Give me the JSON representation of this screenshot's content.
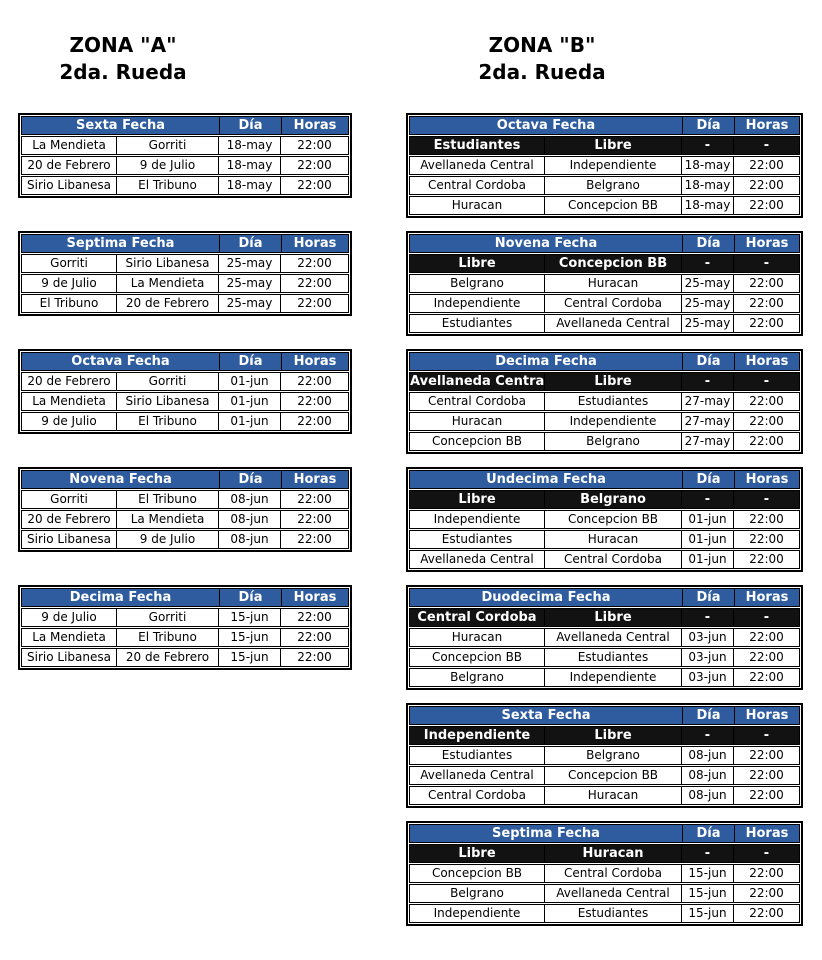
{
  "labels": {
    "dia": "Día",
    "horas": "Horas"
  },
  "colors": {
    "header_bg": "#2e5c9e",
    "header_text": "#ffffff",
    "libre_bg": "#121212",
    "libre_text": "#ffffff",
    "border": "#000000",
    "row_bg": "#ffffff",
    "row_text": "#000000",
    "title_text": "#000000"
  },
  "zones": [
    {
      "id": "A",
      "title_line1": "ZONA \"A\"",
      "title_line2": "2da. Rueda",
      "tables": [
        {
          "fecha": "Sexta Fecha",
          "rows": [
            {
              "home": "La Mendieta",
              "away": "Gorriti",
              "dia": "18-may",
              "horas": "22:00",
              "libre": false
            },
            {
              "home": "20 de Febrero",
              "away": "9 de Julio",
              "dia": "18-may",
              "horas": "22:00",
              "libre": false
            },
            {
              "home": "Sirio Libanesa",
              "away": "El Tribuno",
              "dia": "18-may",
              "horas": "22:00",
              "libre": false
            }
          ]
        },
        {
          "fecha": "Septima Fecha",
          "rows": [
            {
              "home": "Gorriti",
              "away": "Sirio Libanesa",
              "dia": "25-may",
              "horas": "22:00",
              "libre": false
            },
            {
              "home": "9 de Julio",
              "away": "La Mendieta",
              "dia": "25-may",
              "horas": "22:00",
              "libre": false
            },
            {
              "home": "El Tribuno",
              "away": "20 de Febrero",
              "dia": "25-may",
              "horas": "22:00",
              "libre": false
            }
          ]
        },
        {
          "fecha": "Octava Fecha",
          "rows": [
            {
              "home": "20 de Febrero",
              "away": "Gorriti",
              "dia": "01-jun",
              "horas": "22:00",
              "libre": false
            },
            {
              "home": "La Mendieta",
              "away": "Sirio Libanesa",
              "dia": "01-jun",
              "horas": "22:00",
              "libre": false
            },
            {
              "home": "9 de Julio",
              "away": "El Tribuno",
              "dia": "01-jun",
              "horas": "22:00",
              "libre": false
            }
          ]
        },
        {
          "fecha": "Novena Fecha",
          "rows": [
            {
              "home": "Gorriti",
              "away": "El Tribuno",
              "dia": "08-jun",
              "horas": "22:00",
              "libre": false
            },
            {
              "home": "20 de Febrero",
              "away": "La Mendieta",
              "dia": "08-jun",
              "horas": "22:00",
              "libre": false
            },
            {
              "home": "Sirio Libanesa",
              "away": "9 de Julio",
              "dia": "08-jun",
              "horas": "22:00",
              "libre": false
            }
          ]
        },
        {
          "fecha": "Decima Fecha",
          "rows": [
            {
              "home": "9 de Julio",
              "away": "Gorriti",
              "dia": "15-jun",
              "horas": "22:00",
              "libre": false
            },
            {
              "home": "La Mendieta",
              "away": "El Tribuno",
              "dia": "15-jun",
              "horas": "22:00",
              "libre": false
            },
            {
              "home": "Sirio Libanesa",
              "away": "20 de Febrero",
              "dia": "15-jun",
              "horas": "22:00",
              "libre": false
            }
          ]
        }
      ]
    },
    {
      "id": "B",
      "title_line1": "ZONA \"B\"",
      "title_line2": "2da. Rueda",
      "tables": [
        {
          "fecha": "Octava Fecha",
          "rows": [
            {
              "home": "Estudiantes",
              "away": "Libre",
              "dia": "-",
              "horas": "-",
              "libre": true
            },
            {
              "home": "Avellaneda Central",
              "away": "Independiente",
              "dia": "18-may",
              "horas": "22:00",
              "libre": false
            },
            {
              "home": "Central Cordoba",
              "away": "Belgrano",
              "dia": "18-may",
              "horas": "22:00",
              "libre": false
            },
            {
              "home": "Huracan",
              "away": "Concepcion BB",
              "dia": "18-may",
              "horas": "22:00",
              "libre": false
            }
          ]
        },
        {
          "fecha": "Novena Fecha",
          "rows": [
            {
              "home": "Libre",
              "away": "Concepcion BB",
              "dia": "-",
              "horas": "-",
              "libre": true
            },
            {
              "home": "Belgrano",
              "away": "Huracan",
              "dia": "25-may",
              "horas": "22:00",
              "libre": false
            },
            {
              "home": "Independiente",
              "away": "Central Cordoba",
              "dia": "25-may",
              "horas": "22:00",
              "libre": false
            },
            {
              "home": "Estudiantes",
              "away": "Avellaneda Central",
              "dia": "25-may",
              "horas": "22:00",
              "libre": false
            }
          ]
        },
        {
          "fecha": "Decima Fecha",
          "rows": [
            {
              "home": "Avellaneda Central",
              "away": "Libre",
              "dia": "-",
              "horas": "-",
              "libre": true
            },
            {
              "home": "Central Cordoba",
              "away": "Estudiantes",
              "dia": "27-may",
              "horas": "22:00",
              "libre": false
            },
            {
              "home": "Huracan",
              "away": "Independiente",
              "dia": "27-may",
              "horas": "22:00",
              "libre": false
            },
            {
              "home": "Concepcion BB",
              "away": "Belgrano",
              "dia": "27-may",
              "horas": "22:00",
              "libre": false
            }
          ]
        },
        {
          "fecha": "Undecima Fecha",
          "rows": [
            {
              "home": "Libre",
              "away": "Belgrano",
              "dia": "-",
              "horas": "-",
              "libre": true
            },
            {
              "home": "Independiente",
              "away": "Concepcion BB",
              "dia": "01-jun",
              "horas": "22:00",
              "libre": false
            },
            {
              "home": "Estudiantes",
              "away": "Huracan",
              "dia": "01-jun",
              "horas": "22:00",
              "libre": false
            },
            {
              "home": "Avellaneda Central",
              "away": "Central Cordoba",
              "dia": "01-jun",
              "horas": "22:00",
              "libre": false
            }
          ]
        },
        {
          "fecha": "Duodecima Fecha",
          "rows": [
            {
              "home": "Central Cordoba",
              "away": "Libre",
              "dia": "-",
              "horas": "-",
              "libre": true
            },
            {
              "home": "Huracan",
              "away": "Avellaneda Central",
              "dia": "03-jun",
              "horas": "22:00",
              "libre": false
            },
            {
              "home": "Concepcion BB",
              "away": "Estudiantes",
              "dia": "03-jun",
              "horas": "22:00",
              "libre": false
            },
            {
              "home": "Belgrano",
              "away": "Independiente",
              "dia": "03-jun",
              "horas": "22:00",
              "libre": false
            }
          ]
        },
        {
          "fecha": "Sexta Fecha",
          "rows": [
            {
              "home": "Independiente",
              "away": "Libre",
              "dia": "-",
              "horas": "-",
              "libre": true
            },
            {
              "home": "Estudiantes",
              "away": "Belgrano",
              "dia": "08-jun",
              "horas": "22:00",
              "libre": false
            },
            {
              "home": "Avellaneda Central",
              "away": "Concepcion BB",
              "dia": "08-jun",
              "horas": "22:00",
              "libre": false
            },
            {
              "home": "Central Cordoba",
              "away": "Huracan",
              "dia": "08-jun",
              "horas": "22:00",
              "libre": false
            }
          ]
        },
        {
          "fecha": "Septima Fecha",
          "rows": [
            {
              "home": "Libre",
              "away": "Huracan",
              "dia": "-",
              "horas": "-",
              "libre": true
            },
            {
              "home": "Concepcion BB",
              "away": "Central Cordoba",
              "dia": "15-jun",
              "horas": "22:00",
              "libre": false
            },
            {
              "home": "Belgrano",
              "away": "Avellaneda Central",
              "dia": "15-jun",
              "horas": "22:00",
              "libre": false
            },
            {
              "home": "Independiente",
              "away": "Estudiantes",
              "dia": "15-jun",
              "horas": "22:00",
              "libre": false
            }
          ]
        }
      ]
    }
  ]
}
